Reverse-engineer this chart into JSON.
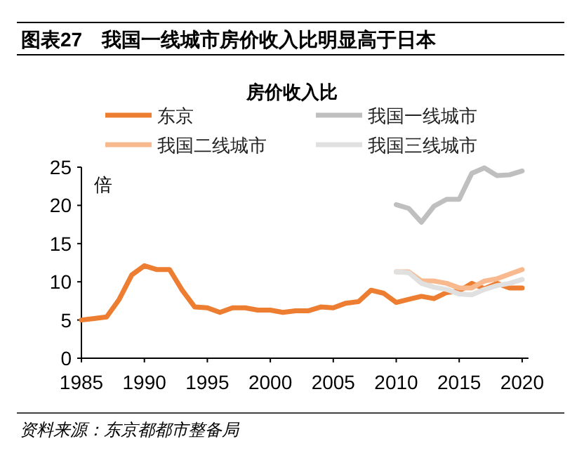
{
  "chart_data": {
    "type": "line",
    "title": "图表27　我国一线城市房价收入比明显高于日本",
    "subtitle": "房价收入比",
    "ylabel": "倍",
    "annotations": [
      "资料来源：东京都都市整备局"
    ],
    "legend": "top",
    "xlim": [
      1985,
      2020.5
    ],
    "ylim": [
      0,
      25
    ],
    "xticks": [
      1985,
      1990,
      1995,
      2000,
      2005,
      2010,
      2015,
      2020
    ],
    "yticks": [
      0,
      5,
      10,
      15,
      20,
      25
    ],
    "series": [
      {
        "name": "东京",
        "color": "#ed7d31",
        "x": [
          1985,
          1986,
          1987,
          1988,
          1989,
          1990,
          1991,
          1992,
          1993,
          1994,
          1995,
          1996,
          1997,
          1998,
          1999,
          2000,
          2001,
          2002,
          2003,
          2004,
          2005,
          2006,
          2007,
          2008,
          2009,
          2010,
          2011,
          2012,
          2013,
          2014,
          2015,
          2016,
          2017,
          2018,
          2019,
          2020
        ],
        "values": [
          5.0,
          5.2,
          5.4,
          7.7,
          10.9,
          12.1,
          11.6,
          11.6,
          8.9,
          6.7,
          6.6,
          6.0,
          6.6,
          6.6,
          6.3,
          6.3,
          6.0,
          6.2,
          6.2,
          6.7,
          6.6,
          7.2,
          7.4,
          8.9,
          8.5,
          7.3,
          7.7,
          8.1,
          7.8,
          8.6,
          8.8,
          9.8,
          9.1,
          9.8,
          9.2,
          9.2
        ]
      },
      {
        "name": "我国一线城市",
        "color": "#bfbfbf",
        "x": [
          2010,
          2011,
          2012,
          2013,
          2014,
          2015,
          2016,
          2017,
          2018,
          2019,
          2020
        ],
        "values": [
          20.1,
          19.6,
          17.8,
          19.9,
          20.8,
          20.8,
          24.2,
          24.9,
          23.9,
          24.0,
          24.5
        ]
      },
      {
        "name": "我国二线城市",
        "color": "#f8b98f",
        "x": [
          2010,
          2011,
          2012,
          2013,
          2014,
          2015,
          2016,
          2017,
          2018,
          2019,
          2020
        ],
        "values": [
          11.3,
          11.3,
          10.1,
          10.1,
          9.8,
          9.2,
          9.2,
          10.1,
          10.4,
          11.0,
          11.6
        ]
      },
      {
        "name": "我国三线城市",
        "color": "#e0e0e0",
        "x": [
          2010,
          2011,
          2012,
          2013,
          2014,
          2015,
          2016,
          2017,
          2018,
          2019,
          2020
        ],
        "values": [
          11.3,
          11.2,
          9.8,
          9.3,
          9.0,
          8.4,
          8.3,
          9.0,
          9.5,
          9.8,
          10.3
        ]
      }
    ]
  }
}
